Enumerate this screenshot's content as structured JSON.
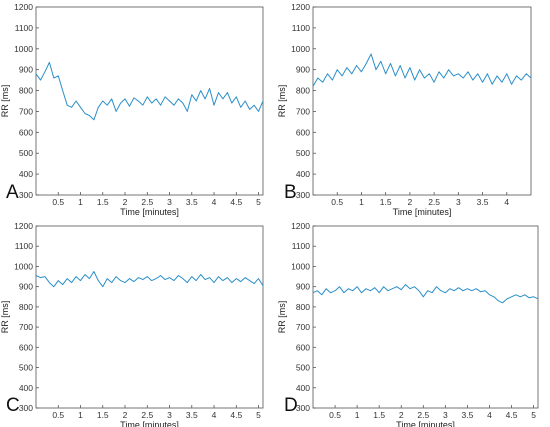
{
  "chart_data": [
    {
      "type": "line",
      "panel_label": "A",
      "xlabel": "Time [minutes]",
      "ylabel": "RR [ms]",
      "xlim": [
        0,
        5.1
      ],
      "ylim": [
        300,
        1200
      ],
      "xticks": [
        0.5,
        1,
        1.5,
        2,
        2.5,
        3,
        3.5,
        4,
        4.5,
        5
      ],
      "xtick_labels": [
        "0.5",
        "1",
        "1.5",
        "2",
        "2.5",
        "3",
        "3.5",
        "4",
        "4.5",
        "5"
      ],
      "yticks": [
        300,
        400,
        500,
        600,
        700,
        800,
        900,
        1000,
        1100,
        1200
      ],
      "ytick_labels": [
        "300",
        "400",
        "500",
        "600",
        "700",
        "800",
        "900",
        "1000",
        "1100",
        "1200"
      ],
      "grid": true,
      "series": [
        {
          "color": "#2a8fc9",
          "points": [
            [
              0.0,
              880
            ],
            [
              0.1,
              850
            ],
            [
              0.2,
              890
            ],
            [
              0.3,
              935
            ],
            [
              0.4,
              860
            ],
            [
              0.5,
              870
            ],
            [
              0.6,
              800
            ],
            [
              0.7,
              730
            ],
            [
              0.8,
              720
            ],
            [
              0.9,
              750
            ],
            [
              1.0,
              720
            ],
            [
              1.1,
              690
            ],
            [
              1.2,
              680
            ],
            [
              1.3,
              660
            ],
            [
              1.4,
              720
            ],
            [
              1.5,
              750
            ],
            [
              1.6,
              730
            ],
            [
              1.7,
              760
            ],
            [
              1.8,
              700
            ],
            [
              1.9,
              740
            ],
            [
              2.0,
              760
            ],
            [
              2.1,
              725
            ],
            [
              2.2,
              765
            ],
            [
              2.3,
              750
            ],
            [
              2.4,
              730
            ],
            [
              2.5,
              770
            ],
            [
              2.6,
              740
            ],
            [
              2.7,
              760
            ],
            [
              2.8,
              730
            ],
            [
              2.9,
              770
            ],
            [
              3.0,
              750
            ],
            [
              3.1,
              730
            ],
            [
              3.2,
              760
            ],
            [
              3.3,
              740
            ],
            [
              3.4,
              700
            ],
            [
              3.5,
              780
            ],
            [
              3.6,
              750
            ],
            [
              3.7,
              800
            ],
            [
              3.8,
              760
            ],
            [
              3.9,
              810
            ],
            [
              4.0,
              730
            ],
            [
              4.1,
              790
            ],
            [
              4.2,
              760
            ],
            [
              4.3,
              790
            ],
            [
              4.4,
              740
            ],
            [
              4.5,
              770
            ],
            [
              4.6,
              720
            ],
            [
              4.7,
              750
            ],
            [
              4.8,
              710
            ],
            [
              4.9,
              730
            ],
            [
              5.0,
              700
            ],
            [
              5.1,
              750
            ]
          ]
        }
      ]
    },
    {
      "type": "line",
      "panel_label": "B",
      "xlabel": "Time [minutes]",
      "ylabel": "RR [ms]",
      "xlim": [
        0,
        4.5
      ],
      "ylim": [
        300,
        1200
      ],
      "xticks": [
        0.5,
        1,
        1.5,
        2,
        2.5,
        3,
        3.5,
        4
      ],
      "xtick_labels": [
        "0.5",
        "1",
        "1.5",
        "2",
        "2.5",
        "3",
        "3.5",
        "4"
      ],
      "yticks": [
        300,
        400,
        500,
        600,
        700,
        800,
        900,
        1000,
        1100,
        1200
      ],
      "ytick_labels": [
        "300",
        "400",
        "500",
        "600",
        "700",
        "800",
        "900",
        "1000",
        "1100",
        "1200"
      ],
      "grid": true,
      "series": [
        {
          "color": "#2a8fc9",
          "points": [
            [
              0.0,
              820
            ],
            [
              0.1,
              860
            ],
            [
              0.2,
              840
            ],
            [
              0.3,
              880
            ],
            [
              0.4,
              850
            ],
            [
              0.5,
              900
            ],
            [
              0.6,
              870
            ],
            [
              0.7,
              910
            ],
            [
              0.8,
              880
            ],
            [
              0.9,
              920
            ],
            [
              1.0,
              890
            ],
            [
              1.1,
              930
            ],
            [
              1.2,
              975
            ],
            [
              1.3,
              900
            ],
            [
              1.4,
              940
            ],
            [
              1.5,
              880
            ],
            [
              1.6,
              930
            ],
            [
              1.7,
              870
            ],
            [
              1.8,
              920
            ],
            [
              1.9,
              860
            ],
            [
              2.0,
              910
            ],
            [
              2.1,
              850
            ],
            [
              2.2,
              900
            ],
            [
              2.3,
              860
            ],
            [
              2.4,
              880
            ],
            [
              2.5,
              840
            ],
            [
              2.6,
              890
            ],
            [
              2.7,
              860
            ],
            [
              2.8,
              900
            ],
            [
              2.9,
              870
            ],
            [
              3.0,
              880
            ],
            [
              3.1,
              860
            ],
            [
              3.2,
              890
            ],
            [
              3.3,
              850
            ],
            [
              3.4,
              880
            ],
            [
              3.5,
              840
            ],
            [
              3.6,
              880
            ],
            [
              3.7,
              830
            ],
            [
              3.8,
              870
            ],
            [
              3.9,
              840
            ],
            [
              4.0,
              880
            ],
            [
              4.1,
              830
            ],
            [
              4.2,
              870
            ],
            [
              4.3,
              850
            ],
            [
              4.4,
              880
            ],
            [
              4.5,
              860
            ]
          ]
        }
      ]
    },
    {
      "type": "line",
      "panel_label": "C",
      "xlabel": "Time [minutes]",
      "ylabel": "RR [ms]",
      "xlim": [
        0,
        5.1
      ],
      "ylim": [
        300,
        1200
      ],
      "xticks": [
        0.5,
        1,
        1.5,
        2,
        2.5,
        3,
        3.5,
        4,
        4.5,
        5
      ],
      "xtick_labels": [
        "0.5",
        "1",
        "1.5",
        "2",
        "2.5",
        "3",
        "3.5",
        "4",
        "4.5",
        "5"
      ],
      "yticks": [
        300,
        400,
        500,
        600,
        700,
        800,
        900,
        1000,
        1100,
        1200
      ],
      "ytick_labels": [
        "300",
        "400",
        "500",
        "600",
        "700",
        "800",
        "900",
        "1000",
        "1100",
        "1200"
      ],
      "grid": true,
      "series": [
        {
          "color": "#2a8fc9",
          "points": [
            [
              0.0,
              955
            ],
            [
              0.1,
              945
            ],
            [
              0.2,
              950
            ],
            [
              0.3,
              920
            ],
            [
              0.4,
              900
            ],
            [
              0.5,
              930
            ],
            [
              0.6,
              910
            ],
            [
              0.7,
              940
            ],
            [
              0.8,
              920
            ],
            [
              0.9,
              950
            ],
            [
              1.0,
              930
            ],
            [
              1.1,
              960
            ],
            [
              1.2,
              940
            ],
            [
              1.3,
              975
            ],
            [
              1.4,
              930
            ],
            [
              1.5,
              900
            ],
            [
              1.6,
              940
            ],
            [
              1.7,
              920
            ],
            [
              1.8,
              950
            ],
            [
              1.9,
              930
            ],
            [
              2.0,
              920
            ],
            [
              2.1,
              940
            ],
            [
              2.2,
              925
            ],
            [
              2.3,
              945
            ],
            [
              2.4,
              935
            ],
            [
              2.5,
              950
            ],
            [
              2.6,
              930
            ],
            [
              2.7,
              940
            ],
            [
              2.8,
              955
            ],
            [
              2.9,
              935
            ],
            [
              3.0,
              945
            ],
            [
              3.1,
              930
            ],
            [
              3.2,
              955
            ],
            [
              3.3,
              940
            ],
            [
              3.4,
              920
            ],
            [
              3.5,
              950
            ],
            [
              3.6,
              930
            ],
            [
              3.7,
              960
            ],
            [
              3.8,
              935
            ],
            [
              3.9,
              945
            ],
            [
              4.0,
              920
            ],
            [
              4.1,
              950
            ],
            [
              4.2,
              930
            ],
            [
              4.3,
              945
            ],
            [
              4.4,
              920
            ],
            [
              4.5,
              940
            ],
            [
              4.6,
              925
            ],
            [
              4.7,
              945
            ],
            [
              4.8,
              930
            ],
            [
              4.9,
              915
            ],
            [
              5.0,
              940
            ],
            [
              5.1,
              905
            ]
          ]
        }
      ]
    },
    {
      "type": "line",
      "panel_label": "D",
      "xlabel": "Time [minutes]",
      "ylabel": "RR [ms]",
      "xlim": [
        0,
        5.1
      ],
      "ylim": [
        300,
        1200
      ],
      "xticks": [
        0.5,
        1,
        1.5,
        2,
        2.5,
        3,
        3.5,
        4,
        4.5,
        5
      ],
      "xtick_labels": [
        "0.5",
        "1",
        "1.5",
        "2",
        "2.5",
        "3",
        "3.5",
        "4",
        "4.5",
        "5"
      ],
      "yticks": [
        300,
        400,
        500,
        600,
        700,
        800,
        900,
        1000,
        1100,
        1200
      ],
      "ytick_labels": [
        "300",
        "400",
        "500",
        "600",
        "700",
        "800",
        "900",
        "1000",
        "1100",
        "1200"
      ],
      "grid": true,
      "series": [
        {
          "color": "#2a8fc9",
          "points": [
            [
              0.0,
              870
            ],
            [
              0.1,
              880
            ],
            [
              0.2,
              860
            ],
            [
              0.3,
              890
            ],
            [
              0.4,
              870
            ],
            [
              0.5,
              880
            ],
            [
              0.6,
              900
            ],
            [
              0.7,
              870
            ],
            [
              0.8,
              890
            ],
            [
              0.9,
              880
            ],
            [
              1.0,
              900
            ],
            [
              1.1,
              870
            ],
            [
              1.2,
              890
            ],
            [
              1.3,
              880
            ],
            [
              1.4,
              895
            ],
            [
              1.5,
              870
            ],
            [
              1.6,
              900
            ],
            [
              1.7,
              880
            ],
            [
              1.8,
              890
            ],
            [
              1.9,
              900
            ],
            [
              2.0,
              885
            ],
            [
              2.1,
              910
            ],
            [
              2.2,
              890
            ],
            [
              2.3,
              900
            ],
            [
              2.4,
              880
            ],
            [
              2.5,
              850
            ],
            [
              2.6,
              880
            ],
            [
              2.7,
              870
            ],
            [
              2.8,
              900
            ],
            [
              2.9,
              880
            ],
            [
              3.0,
              870
            ],
            [
              3.1,
              890
            ],
            [
              3.2,
              880
            ],
            [
              3.3,
              895
            ],
            [
              3.4,
              880
            ],
            [
              3.5,
              890
            ],
            [
              3.6,
              880
            ],
            [
              3.7,
              890
            ],
            [
              3.8,
              875
            ],
            [
              3.9,
              880
            ],
            [
              4.0,
              860
            ],
            [
              4.1,
              850
            ],
            [
              4.2,
              830
            ],
            [
              4.3,
              820
            ],
            [
              4.4,
              840
            ],
            [
              4.5,
              850
            ],
            [
              4.6,
              860
            ],
            [
              4.7,
              850
            ],
            [
              4.8,
              860
            ],
            [
              4.9,
              845
            ],
            [
              5.0,
              850
            ],
            [
              5.1,
              840
            ]
          ]
        }
      ]
    }
  ]
}
